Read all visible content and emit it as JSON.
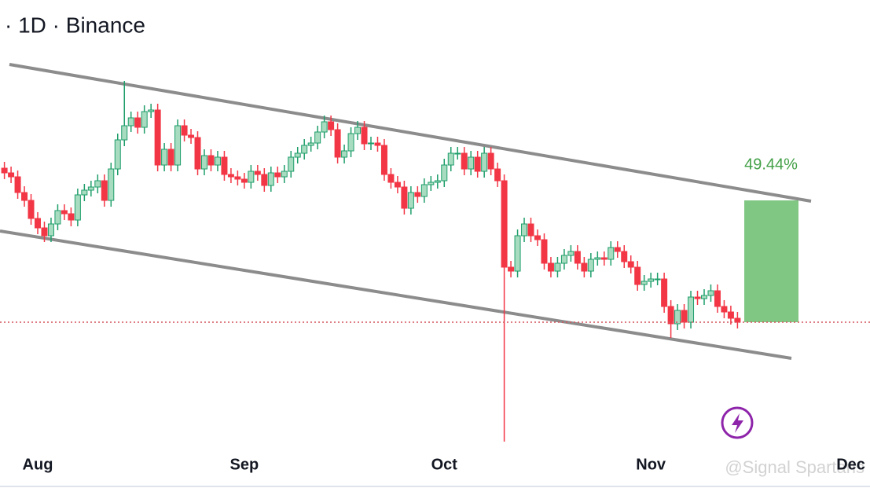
{
  "chart_data": {
    "type": "candlestick",
    "title": "· 1D · Binance",
    "categories": [
      null,
      null,
      null,
      null,
      null,
      "Aug",
      null,
      null,
      null,
      null,
      null,
      null,
      null,
      null,
      null,
      null,
      null,
      null,
      null,
      null,
      null,
      null,
      null,
      null,
      null,
      null,
      null,
      null,
      null,
      null,
      null,
      null,
      null,
      null,
      null,
      null,
      "Sep",
      null,
      null,
      null,
      null,
      null,
      null,
      null,
      null,
      null,
      null,
      null,
      null,
      null,
      null,
      null,
      null,
      null,
      null,
      null,
      null,
      null,
      null,
      null,
      null,
      null,
      null,
      null,
      null,
      null,
      "Oct",
      null,
      null,
      null,
      null,
      null,
      null,
      null,
      null,
      null,
      null,
      null,
      null,
      null,
      null,
      null,
      null,
      null,
      null,
      null,
      null,
      null,
      null,
      null,
      null,
      null,
      null,
      null,
      null,
      null,
      null,
      "Nov",
      null,
      null,
      null,
      null,
      null,
      null,
      null,
      null,
      null,
      null,
      null,
      null,
      null,
      null,
      null,
      null,
      null,
      null,
      null,
      null,
      null,
      null,
      null,
      null,
      null,
      null,
      null,
      null,
      null,
      "Dec"
    ],
    "open": [
      5.1,
      5.04,
      4.99,
      4.79,
      4.69,
      4.46,
      4.34,
      4.24,
      4.39,
      4.56,
      4.52,
      4.44,
      4.76,
      4.82,
      4.86,
      4.94,
      4.69,
      5.09,
      5.46,
      5.64,
      5.74,
      5.62,
      5.82,
      5.84,
      5.14,
      5.34,
      5.14,
      5.64,
      5.52,
      5.49,
      5.09,
      5.26,
      5.14,
      5.24,
      5.02,
      4.99,
      4.96,
      4.92,
      5.06,
      5.02,
      4.88,
      5.04,
      4.99,
      5.06,
      5.24,
      5.29,
      5.39,
      5.42,
      5.56,
      5.69,
      5.59,
      5.24,
      5.32,
      5.54,
      5.62,
      5.41,
      5.42,
      5.39,
      5.02,
      4.92,
      4.86,
      4.59,
      4.79,
      4.74,
      4.89,
      4.92,
      4.94,
      5.14,
      5.29,
      5.29,
      5.09,
      5.24,
      5.06,
      5.29,
      5.09,
      4.94,
      3.84,
      3.79,
      4.24,
      4.39,
      4.24,
      4.19,
      3.89,
      3.79,
      3.89,
      3.99,
      4.04,
      3.89,
      3.79,
      3.94,
      3.96,
      3.94,
      4.09,
      4.04,
      3.91,
      3.84,
      3.62,
      3.66,
      3.69,
      3.69,
      3.34,
      3.12,
      3.29,
      3.14,
      3.46,
      3.44,
      3.48,
      3.54,
      3.34,
      3.27,
      3.19,
      null,
      null,
      null,
      null,
      null,
      null,
      null,
      null,
      null,
      null,
      null,
      null,
      null,
      null,
      null,
      null,
      null
    ],
    "high": [
      5.18,
      5.12,
      5.07,
      4.87,
      4.77,
      4.54,
      4.42,
      4.47,
      4.64,
      4.64,
      4.6,
      4.84,
      4.9,
      4.94,
      5.02,
      5.02,
      5.17,
      5.54,
      6.21,
      5.82,
      5.82,
      5.9,
      5.92,
      5.92,
      5.42,
      5.42,
      5.72,
      5.72,
      5.6,
      5.57,
      5.34,
      5.34,
      5.32,
      5.32,
      5.1,
      5.07,
      5.04,
      5.14,
      5.14,
      5.1,
      5.12,
      5.12,
      5.14,
      5.32,
      5.37,
      5.47,
      5.5,
      5.64,
      5.77,
      5.77,
      5.67,
      5.4,
      5.62,
      5.7,
      5.7,
      5.5,
      5.5,
      5.47,
      5.1,
      5.0,
      4.94,
      4.87,
      4.87,
      4.97,
      5.0,
      5.02,
      5.22,
      5.37,
      5.37,
      5.37,
      5.32,
      5.32,
      5.37,
      5.37,
      5.17,
      5.02,
      3.92,
      4.32,
      4.47,
      4.47,
      4.32,
      4.27,
      3.97,
      3.97,
      4.07,
      4.12,
      4.12,
      3.97,
      4.02,
      4.04,
      4.04,
      4.17,
      4.17,
      4.12,
      3.99,
      3.92,
      3.74,
      3.77,
      3.77,
      3.77,
      3.42,
      3.37,
      3.37,
      3.54,
      3.54,
      3.56,
      3.62,
      3.62,
      3.42,
      3.35,
      3.27,
      null,
      null,
      null,
      null,
      null,
      null,
      null,
      null,
      null,
      null,
      null,
      null,
      null,
      null,
      null,
      null,
      null
    ],
    "low": [
      4.96,
      4.91,
      4.71,
      4.61,
      4.38,
      4.26,
      4.16,
      4.16,
      4.31,
      4.44,
      4.36,
      4.36,
      4.68,
      4.74,
      4.78,
      4.61,
      4.61,
      5.01,
      5.38,
      5.56,
      5.54,
      5.54,
      5.74,
      5.06,
      5.06,
      5.06,
      5.06,
      5.44,
      5.41,
      5.01,
      5.01,
      5.06,
      5.06,
      4.94,
      4.91,
      4.88,
      4.84,
      4.84,
      4.94,
      4.8,
      4.8,
      4.91,
      4.91,
      4.98,
      5.16,
      5.21,
      5.31,
      5.34,
      5.48,
      5.51,
      5.16,
      5.16,
      5.24,
      5.46,
      5.33,
      5.33,
      5.31,
      4.94,
      4.84,
      4.78,
      4.51,
      4.51,
      4.66,
      4.66,
      4.81,
      4.84,
      4.86,
      5.06,
      5.21,
      5.01,
      5.01,
      4.98,
      4.98,
      5.01,
      4.86,
      1.62,
      3.71,
      3.71,
      4.16,
      4.16,
      4.11,
      3.81,
      3.71,
      3.71,
      3.81,
      3.91,
      3.81,
      3.71,
      3.71,
      3.86,
      3.86,
      3.86,
      3.96,
      3.83,
      3.76,
      3.54,
      3.54,
      3.58,
      3.61,
      3.26,
      2.94,
      3.04,
      3.06,
      3.06,
      3.36,
      3.36,
      3.4,
      3.26,
      3.19,
      3.11,
      3.06,
      null,
      null,
      null,
      null,
      null,
      null,
      null,
      null,
      null,
      null,
      null,
      null,
      null,
      null,
      null,
      null,
      null
    ],
    "close": [
      5.04,
      4.99,
      4.79,
      4.69,
      4.46,
      4.34,
      4.24,
      4.39,
      4.56,
      4.52,
      4.44,
      4.76,
      4.82,
      4.86,
      4.94,
      4.69,
      5.09,
      5.46,
      5.64,
      5.74,
      5.62,
      5.82,
      5.84,
      5.14,
      5.34,
      5.14,
      5.64,
      5.52,
      5.49,
      5.09,
      5.26,
      5.14,
      5.24,
      5.02,
      4.99,
      4.96,
      4.92,
      5.06,
      5.02,
      4.88,
      5.04,
      4.99,
      5.06,
      5.24,
      5.29,
      5.39,
      5.42,
      5.56,
      5.69,
      5.59,
      5.24,
      5.32,
      5.54,
      5.62,
      5.41,
      5.42,
      5.39,
      5.02,
      4.92,
      4.86,
      4.59,
      4.79,
      4.74,
      4.89,
      4.92,
      4.94,
      5.14,
      5.29,
      5.29,
      5.09,
      5.24,
      5.06,
      5.29,
      5.09,
      4.94,
      3.84,
      3.79,
      4.24,
      4.39,
      4.24,
      4.19,
      3.89,
      3.79,
      3.89,
      3.99,
      4.04,
      3.89,
      3.79,
      3.94,
      3.96,
      3.94,
      4.09,
      4.04,
      3.91,
      3.84,
      3.62,
      3.66,
      3.69,
      3.69,
      3.34,
      3.12,
      3.29,
      3.14,
      3.46,
      3.44,
      3.48,
      3.54,
      3.34,
      3.27,
      3.19,
      3.14,
      null,
      null,
      null,
      null,
      null,
      null,
      null,
      null,
      null,
      null,
      null,
      null,
      null,
      null,
      null,
      null,
      null
    ],
    "up_color": "#1e9e6a",
    "down_color": "#f23645",
    "ylim": [
      1.49,
      7.24
    ],
    "annotation": "49.44%",
    "watermark": "@Signal Spartans"
  }
}
